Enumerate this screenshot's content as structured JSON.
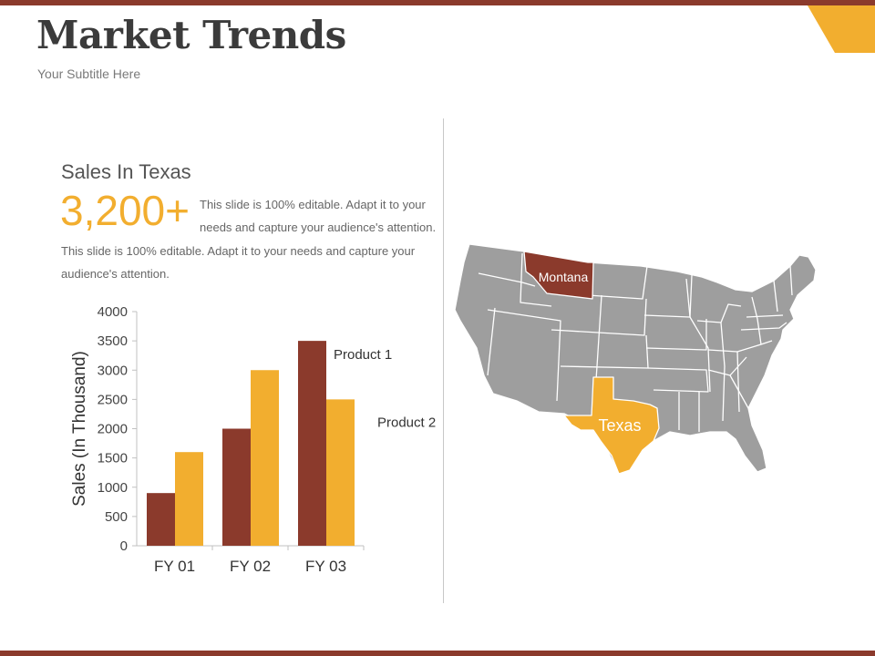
{
  "slide": {
    "title": "Market Trends",
    "subtitle": "Your Subtitle Here"
  },
  "stats": {
    "heading": "Sales In Texas",
    "value": "3,200+",
    "value_description": "This slide is 100% editable. Adapt it to your needs and capture your audience's attention.",
    "body": "This slide is 100% editable. Adapt it to your needs and capture your audience's attention."
  },
  "colors": {
    "brand_dark": "#8b3a2c",
    "brand_accent": "#f2ae2f",
    "map_gray": "#9e9e9e"
  },
  "map": {
    "labels": {
      "montana": "Montana",
      "texas": "Texas"
    }
  },
  "chart_data": {
    "type": "bar",
    "categories": [
      "FY 01",
      "FY 02",
      "FY 03"
    ],
    "series": [
      {
        "name": "Product 1",
        "values": [
          900,
          2000,
          3500
        ],
        "color": "#8b3a2c"
      },
      {
        "name": "Product 2",
        "values": [
          1600,
          3000,
          2500
        ],
        "color": "#f2ae2f"
      }
    ],
    "ylabel": "Sales (In Thousand)",
    "ylim": [
      0,
      4000
    ],
    "yticks": [
      0,
      500,
      1000,
      1500,
      2000,
      2500,
      3000,
      3500,
      4000
    ],
    "grid": false,
    "legend": "inline-right"
  }
}
